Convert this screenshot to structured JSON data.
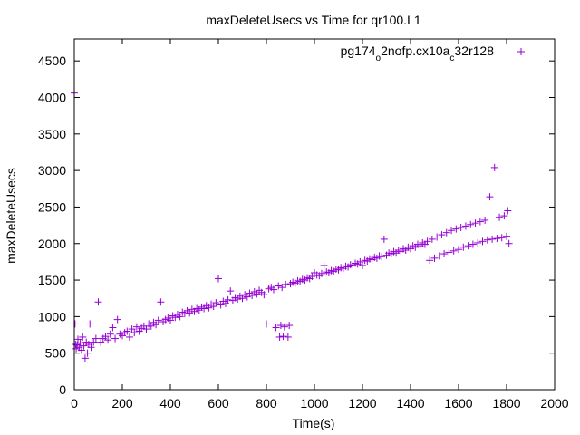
{
  "chart_data": {
    "type": "scatter",
    "title": "maxDeleteUsecs vs Time for qr100.L1",
    "xlabel": "Time(s)",
    "ylabel": "maxDeleteUsecs",
    "xlim": [
      0,
      2000
    ],
    "ylim": [
      0,
      4800
    ],
    "x_ticks": [
      "0",
      "200",
      "400",
      "600",
      "800",
      "1000",
      "1200",
      "1400",
      "1600",
      "1800",
      "2000"
    ],
    "y_ticks": [
      "0",
      "500",
      "1000",
      "1500",
      "2000",
      "2500",
      "3000",
      "3500",
      "4000",
      "4500"
    ],
    "grid": false,
    "legend_position": "top-right",
    "marker": "+",
    "series_color": "#9400d3",
    "series": [
      {
        "name": "pg174_o2nofp.cx10a_c32r128",
        "name_parts": [
          "pg174",
          "o",
          "2nofp.cx10a",
          "c",
          "32r128"
        ],
        "points": [
          [
            0,
            4060
          ],
          [
            3,
            900
          ],
          [
            5,
            620
          ],
          [
            8,
            560
          ],
          [
            12,
            610
          ],
          [
            15,
            690
          ],
          [
            20,
            580
          ],
          [
            25,
            640
          ],
          [
            30,
            540
          ],
          [
            35,
            720
          ],
          [
            40,
            600
          ],
          [
            45,
            430
          ],
          [
            50,
            650
          ],
          [
            55,
            500
          ],
          [
            60,
            620
          ],
          [
            65,
            900
          ],
          [
            70,
            580
          ],
          [
            80,
            650
          ],
          [
            90,
            700
          ],
          [
            100,
            1200
          ],
          [
            110,
            650
          ],
          [
            120,
            700
          ],
          [
            130,
            730
          ],
          [
            140,
            680
          ],
          [
            150,
            760
          ],
          [
            160,
            850
          ],
          [
            170,
            700
          ],
          [
            180,
            960
          ],
          [
            190,
            760
          ],
          [
            200,
            740
          ],
          [
            210,
            780
          ],
          [
            220,
            800
          ],
          [
            230,
            720
          ],
          [
            240,
            830
          ],
          [
            250,
            780
          ],
          [
            260,
            860
          ],
          [
            270,
            800
          ],
          [
            280,
            840
          ],
          [
            290,
            870
          ],
          [
            300,
            830
          ],
          [
            310,
            900
          ],
          [
            320,
            870
          ],
          [
            330,
            920
          ],
          [
            340,
            890
          ],
          [
            350,
            950
          ],
          [
            360,
            1200
          ],
          [
            370,
            930
          ],
          [
            380,
            960
          ],
          [
            390,
            980
          ],
          [
            400,
            950
          ],
          [
            410,
            1010
          ],
          [
            420,
            990
          ],
          [
            430,
            1030
          ],
          [
            440,
            1000
          ],
          [
            450,
            1060
          ],
          [
            460,
            1040
          ],
          [
            470,
            1080
          ],
          [
            480,
            1050
          ],
          [
            490,
            1100
          ],
          [
            500,
            1070
          ],
          [
            510,
            1110
          ],
          [
            520,
            1090
          ],
          [
            530,
            1130
          ],
          [
            540,
            1110
          ],
          [
            550,
            1150
          ],
          [
            560,
            1120
          ],
          [
            570,
            1170
          ],
          [
            580,
            1140
          ],
          [
            590,
            1190
          ],
          [
            600,
            1520
          ],
          [
            610,
            1160
          ],
          [
            620,
            1210
          ],
          [
            630,
            1180
          ],
          [
            640,
            1230
          ],
          [
            650,
            1350
          ],
          [
            660,
            1220
          ],
          [
            670,
            1260
          ],
          [
            680,
            1240
          ],
          [
            690,
            1280
          ],
          [
            700,
            1250
          ],
          [
            710,
            1300
          ],
          [
            720,
            1270
          ],
          [
            730,
            1320
          ],
          [
            740,
            1290
          ],
          [
            750,
            1340
          ],
          [
            760,
            1310
          ],
          [
            770,
            1360
          ],
          [
            780,
            1330
          ],
          [
            790,
            1300
          ],
          [
            800,
            900
          ],
          [
            810,
            1380
          ],
          [
            820,
            1400
          ],
          [
            830,
            1370
          ],
          [
            840,
            850
          ],
          [
            850,
            1420
          ],
          [
            855,
            720
          ],
          [
            860,
            880
          ],
          [
            865,
            1400
          ],
          [
            870,
            730
          ],
          [
            875,
            860
          ],
          [
            880,
            1440
          ],
          [
            890,
            720
          ],
          [
            895,
            880
          ],
          [
            900,
            1450
          ],
          [
            910,
            1470
          ],
          [
            920,
            1460
          ],
          [
            930,
            1490
          ],
          [
            940,
            1480
          ],
          [
            950,
            1510
          ],
          [
            960,
            1500
          ],
          [
            970,
            1530
          ],
          [
            980,
            1520
          ],
          [
            990,
            1550
          ],
          [
            1000,
            1600
          ],
          [
            1010,
            1570
          ],
          [
            1020,
            1560
          ],
          [
            1030,
            1590
          ],
          [
            1040,
            1700
          ],
          [
            1050,
            1610
          ],
          [
            1060,
            1600
          ],
          [
            1070,
            1630
          ],
          [
            1080,
            1620
          ],
          [
            1090,
            1650
          ],
          [
            1100,
            1640
          ],
          [
            1110,
            1670
          ],
          [
            1120,
            1660
          ],
          [
            1130,
            1690
          ],
          [
            1140,
            1680
          ],
          [
            1150,
            1710
          ],
          [
            1160,
            1700
          ],
          [
            1170,
            1730
          ],
          [
            1180,
            1720
          ],
          [
            1190,
            1750
          ],
          [
            1200,
            1700
          ],
          [
            1210,
            1770
          ],
          [
            1220,
            1760
          ],
          [
            1230,
            1790
          ],
          [
            1240,
            1780
          ],
          [
            1250,
            1810
          ],
          [
            1260,
            1800
          ],
          [
            1270,
            1830
          ],
          [
            1280,
            1820
          ],
          [
            1290,
            2060
          ],
          [
            1300,
            1840
          ],
          [
            1310,
            1870
          ],
          [
            1320,
            1860
          ],
          [
            1330,
            1890
          ],
          [
            1340,
            1870
          ],
          [
            1350,
            1910
          ],
          [
            1360,
            1890
          ],
          [
            1370,
            1930
          ],
          [
            1380,
            1910
          ],
          [
            1390,
            1950
          ],
          [
            1400,
            1930
          ],
          [
            1410,
            1970
          ],
          [
            1420,
            1950
          ],
          [
            1430,
            1990
          ],
          [
            1440,
            1970
          ],
          [
            1450,
            2010
          ],
          [
            1460,
            1990
          ],
          [
            1470,
            2030
          ],
          [
            1480,
            1770
          ],
          [
            1490,
            2060
          ],
          [
            1500,
            1800
          ],
          [
            1510,
            2090
          ],
          [
            1520,
            1830
          ],
          [
            1530,
            2120
          ],
          [
            1540,
            1860
          ],
          [
            1550,
            2150
          ],
          [
            1560,
            1880
          ],
          [
            1570,
            2180
          ],
          [
            1580,
            1900
          ],
          [
            1590,
            2200
          ],
          [
            1600,
            1920
          ],
          [
            1610,
            2220
          ],
          [
            1620,
            1950
          ],
          [
            1630,
            2240
          ],
          [
            1640,
            1970
          ],
          [
            1650,
            2260
          ],
          [
            1660,
            1990
          ],
          [
            1670,
            2280
          ],
          [
            1680,
            2010
          ],
          [
            1690,
            2300
          ],
          [
            1700,
            2030
          ],
          [
            1710,
            2320
          ],
          [
            1720,
            2050
          ],
          [
            1730,
            2640
          ],
          [
            1740,
            2060
          ],
          [
            1750,
            3040
          ],
          [
            1760,
            2070
          ],
          [
            1770,
            2360
          ],
          [
            1780,
            2080
          ],
          [
            1790,
            2380
          ],
          [
            1800,
            2100
          ],
          [
            1805,
            2450
          ],
          [
            1810,
            2000
          ]
        ]
      }
    ]
  }
}
